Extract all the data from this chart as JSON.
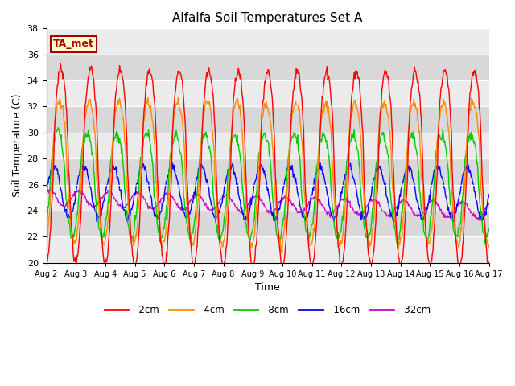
{
  "title": "Alfalfa Soil Temperatures Set A",
  "xlabel": "Time",
  "ylabel": "Soil Temperature (C)",
  "ylim": [
    20,
    38
  ],
  "colors": {
    "-2cm": "#ff0000",
    "-4cm": "#ff8c00",
    "-8cm": "#00cc00",
    "-16cm": "#0000ff",
    "-32cm": "#cc00cc"
  },
  "legend_labels": [
    "-2cm",
    "-4cm",
    "-8cm",
    "-16cm",
    "-32cm"
  ],
  "annotation_label": "TA_met",
  "annotation_color": "#aa0000",
  "annotation_bg": "#ffffcc",
  "annotation_border": "#aa0000",
  "bg_light": "#ebebeb",
  "bg_dark": "#d8d8d8",
  "n_days": 15,
  "ppd": 48,
  "start_day": 2,
  "yticks": [
    20,
    22,
    24,
    26,
    28,
    30,
    32,
    34,
    36,
    38
  ]
}
